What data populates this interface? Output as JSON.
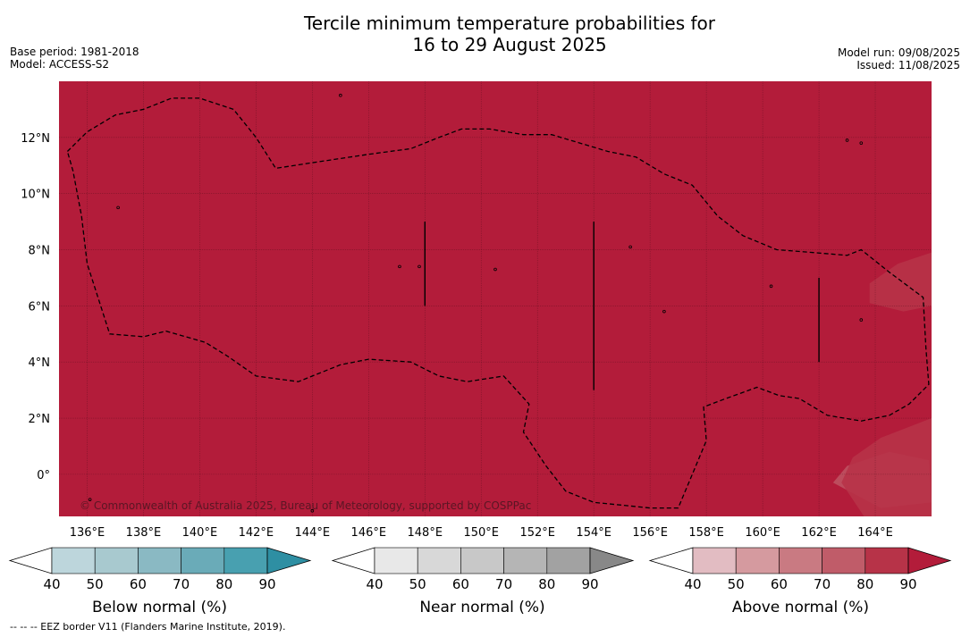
{
  "title_line1": "Tercile minimum temperature probabilities for",
  "title_line2": "16 to 29 August 2025",
  "base_period": "Base period: 1981-2018",
  "model": "Model: ACCESS-S2",
  "model_run": "Model run: 09/08/2025",
  "issued": "Issued: 11/08/2025",
  "copyright": "© Commonwealth of Australia 2025, Bureau of Meteorology, supported by COSPPac",
  "footer": "--  --  -- EEZ border V11 (Flanders Marine Institute, 2019).",
  "map": {
    "lon_range": [
      135,
      166
    ],
    "lat_range": [
      -1.5,
      14
    ],
    "lon_ticks": [
      "136°E",
      "138°E",
      "140°E",
      "142°E",
      "144°E",
      "146°E",
      "148°E",
      "150°E",
      "152°E",
      "154°E",
      "156°E",
      "158°E",
      "160°E",
      "162°E",
      "164°E"
    ],
    "lat_ticks": [
      "0°",
      "2°N",
      "4°N",
      "6°N",
      "8°N",
      "10°N",
      "12°N"
    ],
    "background_color": "#b31c3a",
    "eez_border": [
      [
        135.3,
        11.5
      ],
      [
        136.0,
        12.2
      ],
      [
        137.0,
        12.8
      ],
      [
        138.0,
        13.0
      ],
      [
        139.0,
        13.4
      ],
      [
        140.0,
        13.4
      ],
      [
        141.2,
        13.0
      ],
      [
        142.0,
        12.0
      ],
      [
        142.7,
        10.9
      ],
      [
        144.0,
        11.1
      ],
      [
        146.0,
        11.4
      ],
      [
        147.5,
        11.6
      ],
      [
        148.5,
        12.0
      ],
      [
        149.3,
        12.3
      ],
      [
        150.3,
        12.3
      ],
      [
        151.5,
        12.1
      ],
      [
        152.5,
        12.1
      ],
      [
        153.5,
        11.8
      ],
      [
        154.5,
        11.5
      ],
      [
        155.5,
        11.3
      ],
      [
        156.5,
        10.7
      ],
      [
        157.5,
        10.3
      ],
      [
        158.4,
        9.2
      ],
      [
        159.3,
        8.5
      ],
      [
        160.5,
        8.0
      ],
      [
        161.8,
        7.9
      ],
      [
        163.0,
        7.8
      ],
      [
        163.5,
        8.0
      ],
      [
        164.5,
        7.2
      ],
      [
        165.7,
        6.3
      ],
      [
        165.8,
        4.5
      ],
      [
        165.9,
        3.2
      ],
      [
        165.2,
        2.5
      ],
      [
        164.5,
        2.1
      ],
      [
        163.5,
        1.9
      ],
      [
        162.3,
        2.1
      ],
      [
        161.3,
        2.7
      ],
      [
        160.6,
        2.8
      ],
      [
        159.8,
        3.1
      ],
      [
        158.7,
        2.7
      ],
      [
        157.9,
        2.4
      ],
      [
        158.0,
        1.2
      ],
      [
        157.5,
        0.0
      ],
      [
        157.0,
        -1.2
      ],
      [
        156.0,
        -1.2
      ],
      [
        155.0,
        -1.1
      ],
      [
        154.0,
        -1.0
      ],
      [
        153.0,
        -0.6
      ],
      [
        152.3,
        0.3
      ],
      [
        151.5,
        1.5
      ],
      [
        151.7,
        2.5
      ],
      [
        150.8,
        3.5
      ],
      [
        149.5,
        3.3
      ],
      [
        148.5,
        3.5
      ],
      [
        147.5,
        4.0
      ],
      [
        146.0,
        4.1
      ],
      [
        145.0,
        3.9
      ],
      [
        143.5,
        3.3
      ],
      [
        142.0,
        3.5
      ],
      [
        141.0,
        4.2
      ],
      [
        140.2,
        4.7
      ],
      [
        138.8,
        5.1
      ],
      [
        138.0,
        4.9
      ],
      [
        136.8,
        5.0
      ],
      [
        136.0,
        7.5
      ],
      [
        135.8,
        9.2
      ],
      [
        135.5,
        10.8
      ],
      [
        135.3,
        11.5
      ]
    ],
    "vertical_lines": [
      [
        148,
        6.0,
        9.0
      ],
      [
        154,
        3.0,
        9.0
      ],
      [
        162,
        4.0,
        7.0
      ]
    ]
  },
  "colorbars": [
    {
      "title": "Below normal (%)",
      "labels": [
        "40",
        "50",
        "60",
        "70",
        "80",
        "90"
      ],
      "colors": [
        "#ffffff",
        "#bdd6dc",
        "#a8c9cf",
        "#8ab9c3",
        "#6aabb8",
        "#48a0b0",
        "#2e8fa3"
      ]
    },
    {
      "title": "Near normal (%)",
      "labels": [
        "40",
        "50",
        "60",
        "70",
        "80",
        "90"
      ],
      "colors": [
        "#ffffff",
        "#e8e8e8",
        "#d8d8d8",
        "#c8c8c8",
        "#b5b5b5",
        "#a2a2a2",
        "#888888"
      ]
    },
    {
      "title": "Above normal (%)",
      "labels": [
        "40",
        "50",
        "60",
        "70",
        "80",
        "90"
      ],
      "colors": [
        "#ffffff",
        "#e2bcc2",
        "#d59a9f",
        "#c97a82",
        "#c05c69",
        "#b73348",
        "#b31c3a"
      ]
    }
  ]
}
